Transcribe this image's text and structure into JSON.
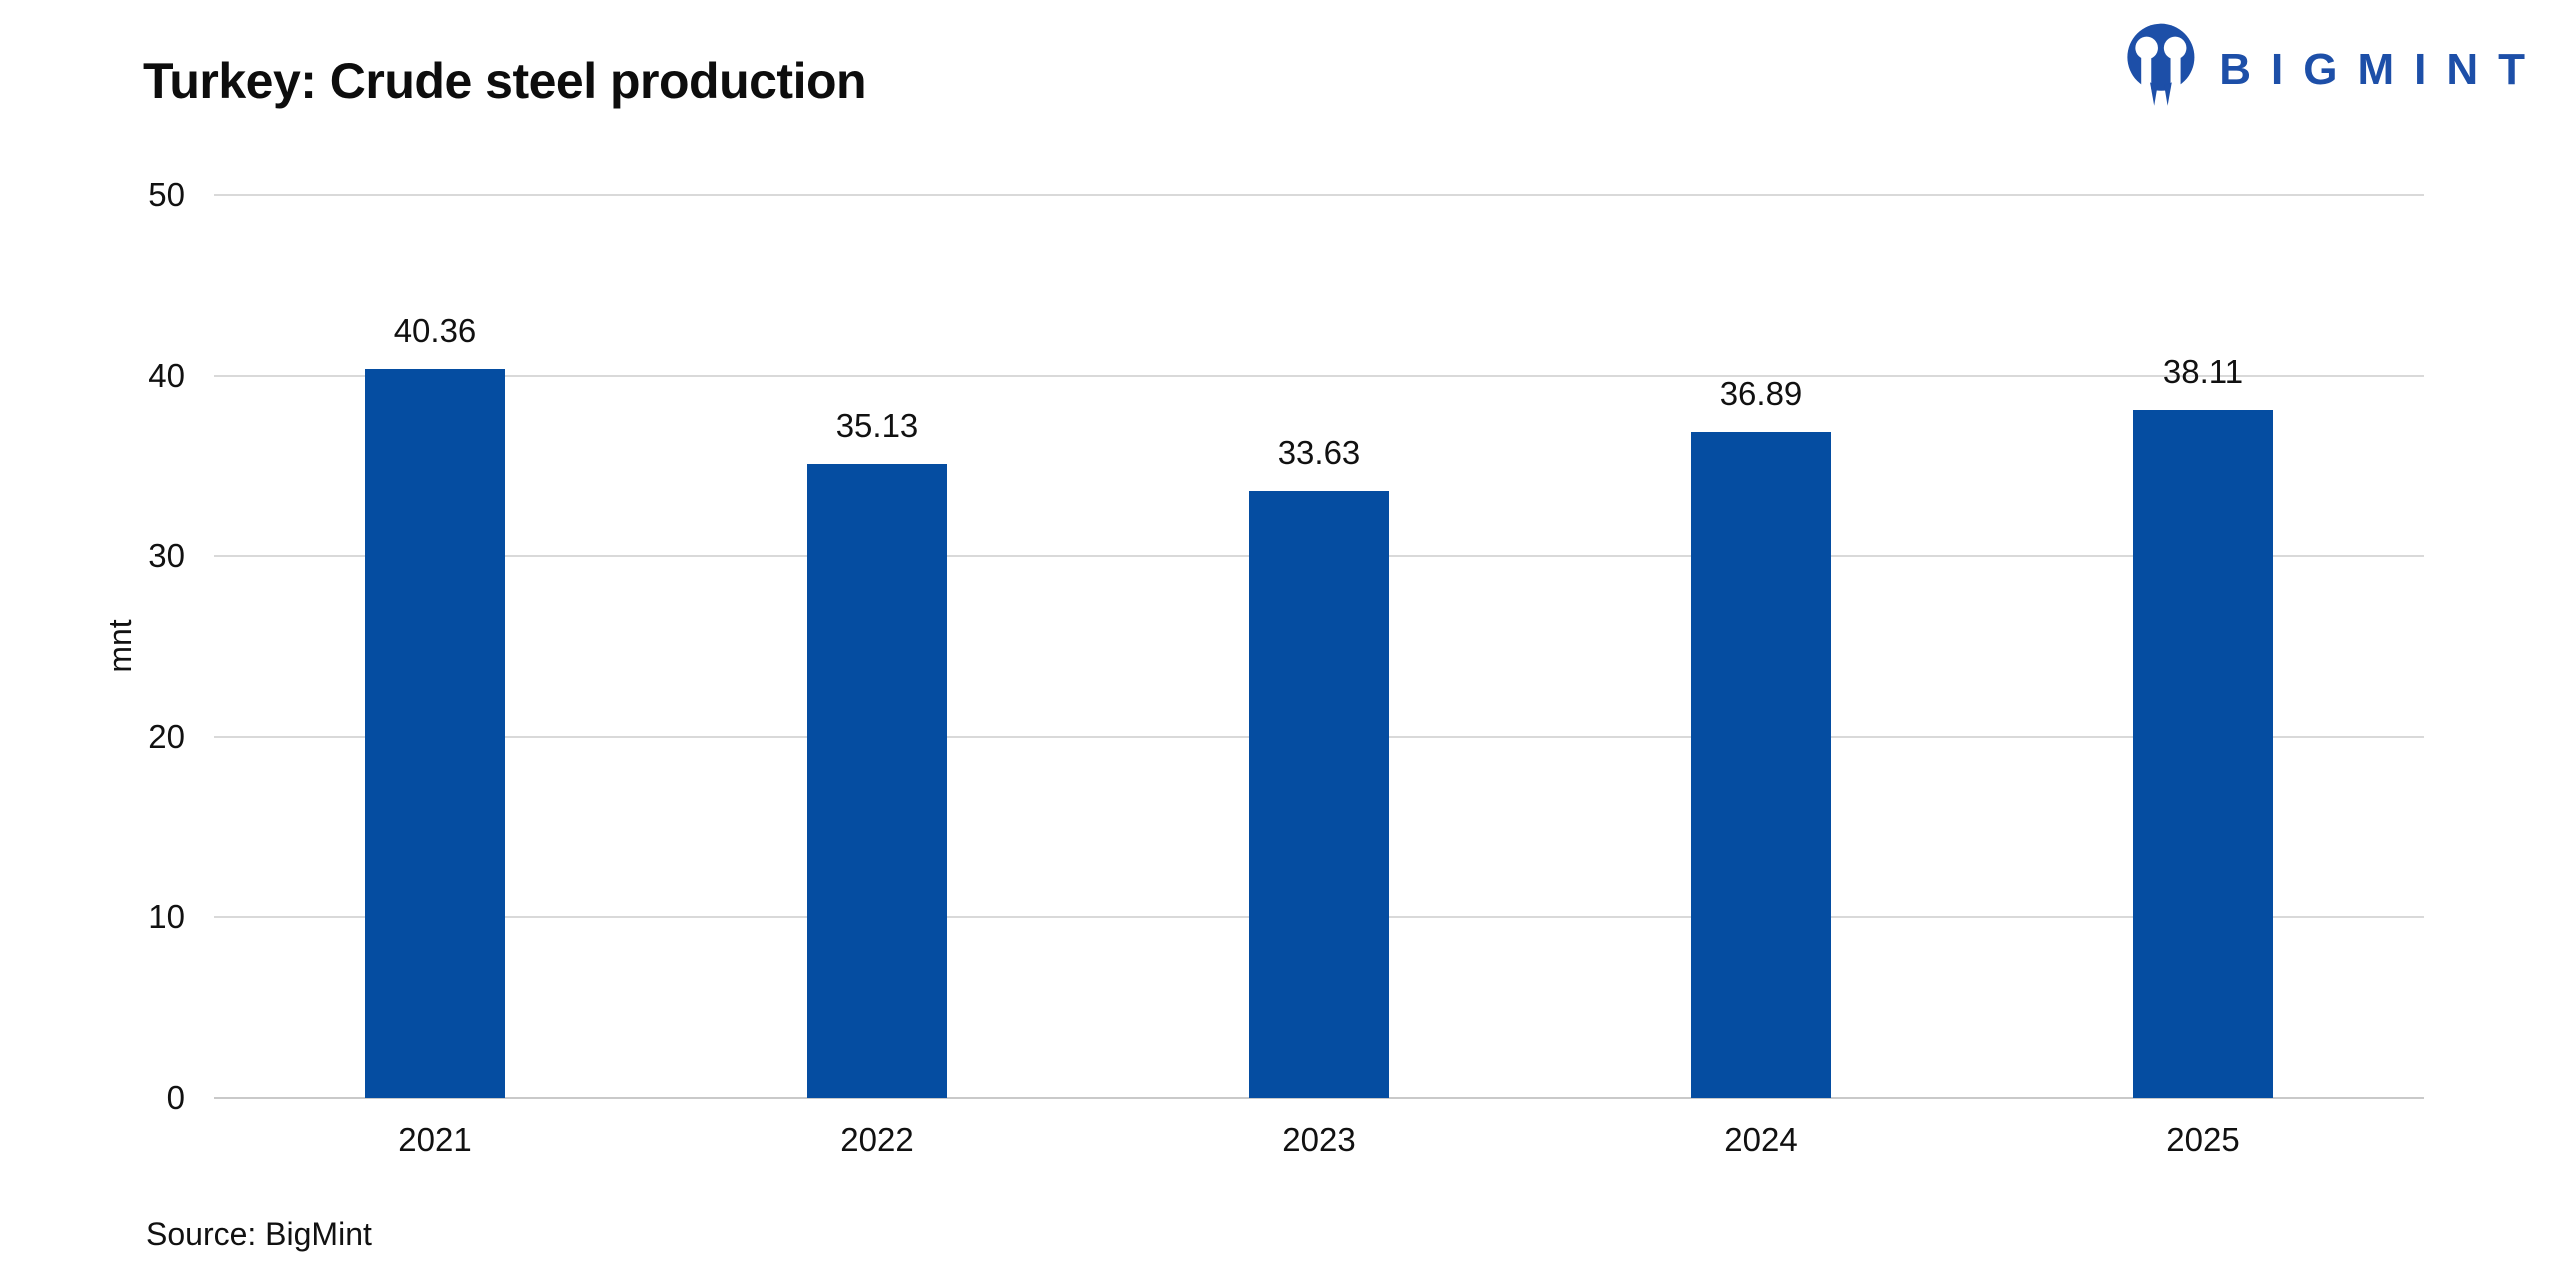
{
  "header": {
    "title": "Turkey: Crude steel production",
    "logo": {
      "text": "BIGMINT",
      "icon": "bigmint-people-mark-icon"
    }
  },
  "chart_data": {
    "type": "bar",
    "title": "Turkey: Crude steel production",
    "categories": [
      "2021",
      "2022",
      "2023",
      "2024",
      "2025"
    ],
    "values": [
      40.36,
      35.13,
      33.63,
      36.89,
      38.11
    ],
    "value_labels": [
      "40.36",
      "35.13",
      "33.63",
      "36.89",
      "38.11"
    ],
    "xlabel": "",
    "ylabel": "mnt",
    "ylim": [
      0,
      50
    ],
    "yticks": [
      0,
      10,
      20,
      30,
      40,
      50
    ],
    "grid": true,
    "legend": false,
    "bar_color": "#054DA1"
  },
  "footer": {
    "source": "Source: BigMint"
  },
  "colors": {
    "bar": "#054DA1",
    "logo_blue": "#1D4FA8",
    "gridline": "#D9D9D9",
    "baseline": "#C9C9C9",
    "text": "#111111",
    "background": "#FFFFFF"
  }
}
